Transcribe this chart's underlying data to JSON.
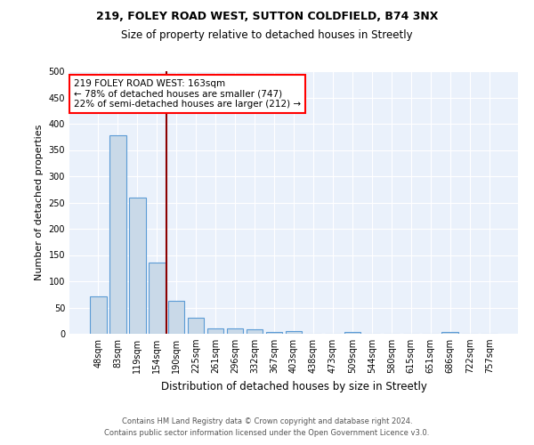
{
  "title1": "219, FOLEY ROAD WEST, SUTTON COLDFIELD, B74 3NX",
  "title2": "Size of property relative to detached houses in Streetly",
  "xlabel": "Distribution of detached houses by size in Streetly",
  "ylabel": "Number of detached properties",
  "bar_labels": [
    "48sqm",
    "83sqm",
    "119sqm",
    "154sqm",
    "190sqm",
    "225sqm",
    "261sqm",
    "296sqm",
    "332sqm",
    "367sqm",
    "403sqm",
    "438sqm",
    "473sqm",
    "509sqm",
    "544sqm",
    "580sqm",
    "615sqm",
    "651sqm",
    "686sqm",
    "722sqm",
    "757sqm"
  ],
  "bar_values": [
    72,
    378,
    259,
    136,
    62,
    30,
    10,
    11,
    8,
    4,
    5,
    0,
    0,
    4,
    0,
    0,
    0,
    0,
    4,
    0,
    0
  ],
  "bar_color": "#c9d9e8",
  "bar_edge_color": "#5b9bd5",
  "vline_x": 3.5,
  "vline_color": "#8b0000",
  "annotation_line1": "219 FOLEY ROAD WEST: 163sqm",
  "annotation_line2": "← 78% of detached houses are smaller (747)",
  "annotation_line3": "22% of semi-detached houses are larger (212) →",
  "annotation_box_color": "white",
  "annotation_box_edge": "red",
  "ylim": [
    0,
    500
  ],
  "yticks": [
    0,
    50,
    100,
    150,
    200,
    250,
    300,
    350,
    400,
    450,
    500
  ],
  "bg_color": "#eaf1fb",
  "footer1": "Contains HM Land Registry data © Crown copyright and database right 2024.",
  "footer2": "Contains public sector information licensed under the Open Government Licence v3.0."
}
